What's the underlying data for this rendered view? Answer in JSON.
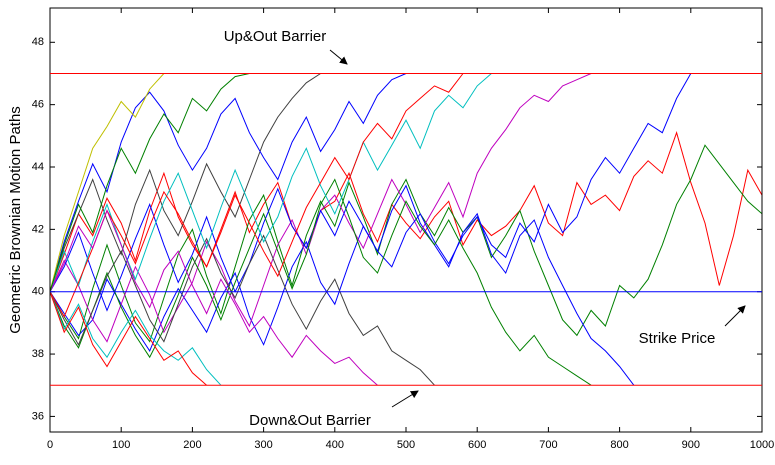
{
  "chart_data": {
    "type": "line",
    "ylabel": "Geometric Brownian Motion Paths",
    "x": [
      0,
      20,
      40,
      60,
      80,
      100,
      120,
      140,
      160,
      180,
      200,
      220,
      240,
      260,
      280,
      300,
      320,
      340,
      360,
      380,
      400,
      420,
      440,
      460,
      480,
      500,
      520,
      540,
      560,
      580,
      600,
      620,
      640,
      660,
      680,
      700,
      720,
      740,
      760,
      780,
      800,
      820,
      840,
      860,
      880,
      900,
      920,
      940,
      960,
      980,
      1000
    ],
    "xlim": [
      0,
      1000
    ],
    "xticks": [
      0,
      100,
      200,
      300,
      400,
      500,
      600,
      700,
      800,
      900,
      1000
    ],
    "ylim": [
      35.5,
      49.1
    ],
    "yticks": [
      36,
      38,
      40,
      42,
      44,
      46,
      48
    ],
    "hlines": [
      {
        "value": 47,
        "color": "#ff0000"
      },
      {
        "value": 37,
        "color": "#ff0000"
      },
      {
        "value": 40,
        "color": "#0000ff"
      }
    ],
    "annotations": [
      {
        "text": "Up&Out Barrier",
        "color": "#ff0000"
      },
      {
        "text": "Down&Out Barrier",
        "color": "#ff0000"
      },
      {
        "text": "Strike Price",
        "color": "#0000ff"
      }
    ],
    "series": [
      {
        "color": "#ff0000",
        "values": [
          40,
          41.2,
          42.5,
          41.8,
          43,
          42.2,
          41,
          42.6,
          43.8,
          42.4,
          41.5,
          40.8,
          42,
          43.2,
          41.9,
          42.8,
          43.5,
          42.1,
          41.4,
          42.6,
          42.9,
          43.8,
          42.5,
          41.6,
          42.8,
          42.2,
          41.7,
          42.4,
          42.9,
          41.5,
          42.3,
          41.8,
          42.1,
          42.6,
          43.4,
          42.2,
          41.8,
          43.5,
          42.8,
          43.1,
          42.6,
          43.7,
          44.2,
          43.8,
          45.1,
          43.5,
          42.2,
          40.2,
          41.8,
          43.9,
          43.1
        ]
      },
      {
        "color": "#008000",
        "values": [
          40,
          39.2,
          38.5,
          40.1,
          41.5,
          40.2,
          39,
          38.4,
          39.8,
          41.2,
          42,
          40.5,
          39.3,
          40.8,
          42.3,
          43.1,
          41.6,
          40.2,
          41.8,
          42.9,
          42.1,
          43.5,
          42.4,
          41.2,
          42.8,
          43.6,
          42.5,
          41.8,
          42.7,
          41.9,
          42.4,
          41.1,
          41.8,
          42.6,
          41.3,
          40.2,
          39.1,
          38.6,
          39.4,
          38.9,
          40.2,
          39.8,
          40.4,
          41.5,
          42.8,
          43.6,
          44.7,
          44.1,
          43.5,
          42.9,
          42.5
        ]
      },
      {
        "color": "#0000ff",
        "values": [
          40,
          39.3,
          38.6,
          39.1,
          40.4,
          39.6,
          38.8,
          38.1,
          39.2,
          40.1,
          39.4,
          38.7,
          39.8,
          40.6,
          39.2,
          38.3,
          39.5,
          40.8,
          41.6,
          40.3,
          39.6,
          40.9,
          42.1,
          41.3,
          42.6,
          43.4,
          42.2,
          41.5,
          40.8,
          41.9,
          42.5,
          41.2,
          40.6,
          41.8,
          42.3,
          41.1,
          40.2,
          39.3,
          38.5,
          38.1,
          37.6,
          37,
          null,
          null,
          null,
          null,
          null,
          null,
          null,
          null,
          null
        ]
      },
      {
        "color": "#bf00bf",
        "values": [
          40,
          41,
          40.2,
          39.1,
          38.4,
          39.6,
          40.8,
          39.9,
          38.7,
          39.5,
          40.3,
          41.6,
          40.8,
          39.7,
          38.9,
          40.2,
          41.5,
          42.3,
          41.2,
          42.6,
          43.1,
          42.2,
          41.4,
          42.5,
          43.6,
          42.8,
          41.9,
          42.7,
          43.5,
          42.4,
          43.8,
          44.6,
          45.2,
          45.9,
          46.3,
          46.1,
          46.6,
          46.8,
          47,
          null,
          null,
          null,
          null,
          null,
          null,
          null,
          null,
          null,
          null,
          null,
          null
        ]
      },
      {
        "color": "#0000ff",
        "values": [
          40,
          40.8,
          41.9,
          40.6,
          39.4,
          40.5,
          41.7,
          42.8,
          41.5,
          40.3,
          41.2,
          42.4,
          41.1,
          40,
          40.9,
          42.2,
          43.3,
          42.1,
          41.4,
          42.6,
          41.8,
          42.9,
          42.1,
          41.3,
          40.8,
          41.9,
          42.5,
          41.6,
          40.9,
          41.8,
          42.4,
          41.5,
          41.1,
          42.2,
          41.6,
          42.8,
          41.9,
          42.4,
          43.6,
          44.3,
          43.8,
          44.6,
          45.4,
          45.1,
          46.2,
          47,
          null,
          null,
          null,
          null,
          null
        ]
      },
      {
        "color": "#008000",
        "values": [
          40,
          38.9,
          38.2,
          39.4,
          40.6,
          39.5,
          38.6,
          37.9,
          38.8,
          39.9,
          41.1,
          40.2,
          39.1,
          40.3,
          41.4,
          42.5,
          41.3,
          40.1,
          41.2,
          42.8,
          43.6,
          42.4,
          41.1,
          40.6,
          41.8,
          42.9,
          42.1,
          41.5,
          42.3,
          41.4,
          40.6,
          39.5,
          38.7,
          38.1,
          38.6,
          37.9,
          37.6,
          37.3,
          37,
          null,
          null,
          null,
          null,
          null,
          null,
          null,
          null,
          null,
          null,
          null,
          null
        ]
      },
      {
        "color": "#404040",
        "values": [
          40,
          41.4,
          42.5,
          43.6,
          42.3,
          41.2,
          42.8,
          43.9,
          42.6,
          41.8,
          42.9,
          44.1,
          43.2,
          42.4,
          43.6,
          44.8,
          45.6,
          46.2,
          46.7,
          47,
          null,
          null,
          null,
          null,
          null,
          null,
          null,
          null,
          null,
          null,
          null,
          null,
          null,
          null,
          null,
          null,
          null,
          null,
          null,
          null,
          null,
          null,
          null,
          null,
          null,
          null,
          null,
          null,
          null,
          null,
          null
        ]
      },
      {
        "color": "#404040",
        "values": [
          40,
          39.1,
          38.3,
          39.4,
          40.5,
          41.3,
          40.2,
          39.1,
          38.4,
          39.6,
          40.8,
          41.7,
          40.6,
          39.8,
          40.9,
          41.8,
          40.7,
          39.6,
          38.8,
          39.7,
          40.4,
          39.3,
          38.6,
          38.9,
          38.1,
          37.8,
          37.5,
          37,
          null,
          null,
          null,
          null,
          null,
          null,
          null,
          null,
          null,
          null,
          null,
          null,
          null,
          null,
          null,
          null,
          null,
          null,
          null,
          null,
          null,
          null,
          null
        ]
      },
      {
        "color": "#00bfbf",
        "values": [
          40,
          41.3,
          40.2,
          41.6,
          42.8,
          41.5,
          40.4,
          41.7,
          42.9,
          43.8,
          42.6,
          41.4,
          42.7,
          43.9,
          42.8,
          41.6,
          42.4,
          43.7,
          44.6,
          43.4,
          42.5,
          43.6,
          44.8,
          43.9,
          44.7,
          45.5,
          44.6,
          45.8,
          46.3,
          45.9,
          46.6,
          47,
          null,
          null,
          null,
          null,
          null,
          null,
          null,
          null,
          null,
          null,
          null,
          null,
          null,
          null,
          null,
          null,
          null,
          null,
          null
        ]
      },
      {
        "color": "#0000ff",
        "values": [
          40,
          41.6,
          42.9,
          44.1,
          43.2,
          44.8,
          45.9,
          46.4,
          45.8,
          44.7,
          43.9,
          44.6,
          45.7,
          46.2,
          45.1,
          44.3,
          43.6,
          44.8,
          45.6,
          44.5,
          45.2,
          46.1,
          45.4,
          46.3,
          46.8,
          47,
          null,
          null,
          null,
          null,
          null,
          null,
          null,
          null,
          null,
          null,
          null,
          null,
          null,
          null,
          null,
          null,
          null,
          null,
          null,
          null,
          null,
          null,
          null,
          null,
          null
        ]
      },
      {
        "color": "#ff0000",
        "values": [
          40,
          39.2,
          40.3,
          41.4,
          42.6,
          41.8,
          40.9,
          42.1,
          43.2,
          42.5,
          41.6,
          40.8,
          41.9,
          43.1,
          42.2,
          41.3,
          40.5,
          41.6,
          42.7,
          43.5,
          44.3,
          43.6,
          44.8,
          45.4,
          44.9,
          45.8,
          46.2,
          46.6,
          46.4,
          47,
          null,
          null,
          null,
          null,
          null,
          null,
          null,
          null,
          null,
          null,
          null,
          null,
          null,
          null,
          null,
          null,
          null,
          null,
          null,
          null,
          null
        ]
      },
      {
        "color": "#bfbf00",
        "values": [
          40,
          41.8,
          43.2,
          44.6,
          45.3,
          46.1,
          45.6,
          46.5,
          47,
          null,
          null,
          null,
          null,
          null,
          null,
          null,
          null,
          null,
          null,
          null,
          null,
          null,
          null,
          null,
          null,
          null,
          null,
          null,
          null,
          null,
          null,
          null,
          null,
          null,
          null,
          null,
          null,
          null,
          null,
          null,
          null,
          null,
          null,
          null,
          null,
          null,
          null,
          null,
          null,
          null,
          null
        ]
      },
      {
        "color": "#bf00bf",
        "values": [
          40,
          40.9,
          42.1,
          41.4,
          42.6,
          41.5,
          40.3,
          39.5,
          40.7,
          41.3,
          40.2,
          39.3,
          40.4,
          39.6,
          38.7,
          39.2,
          38.5,
          37.9,
          38.6,
          38.1,
          37.7,
          37.9,
          37.4,
          37,
          null,
          null,
          null,
          null,
          null,
          null,
          null,
          null,
          null,
          null,
          null,
          null,
          null,
          null,
          null,
          null,
          null,
          null,
          null,
          null,
          null,
          null,
          null,
          null,
          null,
          null,
          null
        ]
      },
      {
        "color": "#00bfbf",
        "values": [
          40,
          38.8,
          39.6,
          38.5,
          37.9,
          38.7,
          39.4,
          38.6,
          38.1,
          37.8,
          38.2,
          37.5,
          37,
          null,
          null,
          null,
          null,
          null,
          null,
          null,
          null,
          null,
          null,
          null,
          null,
          null,
          null,
          null,
          null,
          null,
          null,
          null,
          null,
          null,
          null,
          null,
          null,
          null,
          null,
          null,
          null,
          null,
          null,
          null,
          null,
          null,
          null,
          null,
          null,
          null,
          null
        ]
      },
      {
        "color": "#008000",
        "values": [
          40,
          41.5,
          42.8,
          41.9,
          43.4,
          44.6,
          43.8,
          44.9,
          45.7,
          45.1,
          46.2,
          45.8,
          46.5,
          46.9,
          47,
          null,
          null,
          null,
          null,
          null,
          null,
          null,
          null,
          null,
          null,
          null,
          null,
          null,
          null,
          null,
          null,
          null,
          null,
          null,
          null,
          null,
          null,
          null,
          null,
          null,
          null,
          null,
          null,
          null,
          null,
          null,
          null,
          null,
          null,
          null,
          null
        ]
      },
      {
        "color": "#ff0000",
        "values": [
          40,
          38.7,
          39.5,
          38.3,
          37.6,
          38.4,
          39.2,
          38.5,
          37.8,
          38.1,
          37.4,
          37,
          null,
          null,
          null,
          null,
          null,
          null,
          null,
          null,
          null,
          null,
          null,
          null,
          null,
          null,
          null,
          null,
          null,
          null,
          null,
          null,
          null,
          null,
          null,
          null,
          null,
          null,
          null,
          null,
          null,
          null,
          null,
          null,
          null,
          null,
          null,
          null,
          null,
          null,
          null
        ]
      }
    ]
  }
}
